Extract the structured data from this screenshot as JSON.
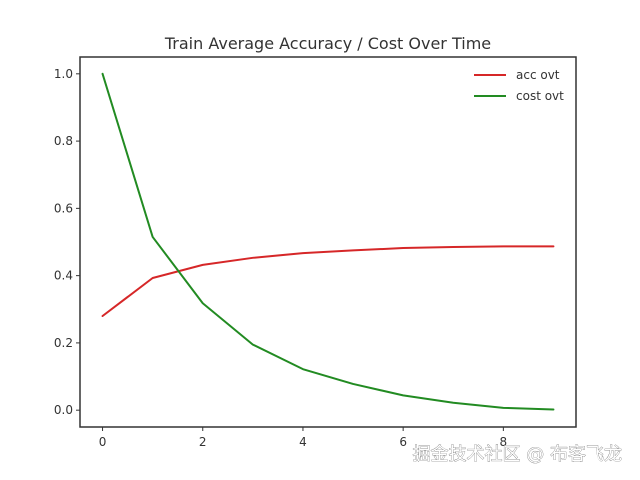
{
  "chart_data": {
    "type": "line",
    "title": "Train Average Accuracy / Cost Over Time",
    "xlabel": "",
    "ylabel": "",
    "x": [
      0,
      1,
      2,
      3,
      4,
      5,
      6,
      7,
      8,
      9
    ],
    "xlim": [
      -0.45,
      9.45
    ],
    "ylim": [
      -0.05,
      1.05
    ],
    "xticks": [
      0,
      2,
      4,
      6,
      8
    ],
    "yticks": [
      0.0,
      0.2,
      0.4,
      0.6,
      0.8,
      1.0
    ],
    "xtick_labels": [
      "0",
      "2",
      "4",
      "6",
      "8"
    ],
    "ytick_labels": [
      "0.0",
      "0.2",
      "0.4",
      "0.6",
      "0.8",
      "1.0"
    ],
    "grid": false,
    "legend_position": "top-right",
    "series": [
      {
        "name": "acc ovt",
        "color": "#d62728",
        "values": [
          0.28,
          0.393,
          0.432,
          0.453,
          0.467,
          0.475,
          0.482,
          0.485,
          0.487,
          0.487
        ]
      },
      {
        "name": "cost ovt",
        "color": "#228b22",
        "values": [
          1.0,
          0.515,
          0.318,
          0.195,
          0.122,
          0.078,
          0.044,
          0.022,
          0.007,
          0.002
        ]
      }
    ]
  },
  "watermark": "掘金技术社区 @ 布客飞龙"
}
